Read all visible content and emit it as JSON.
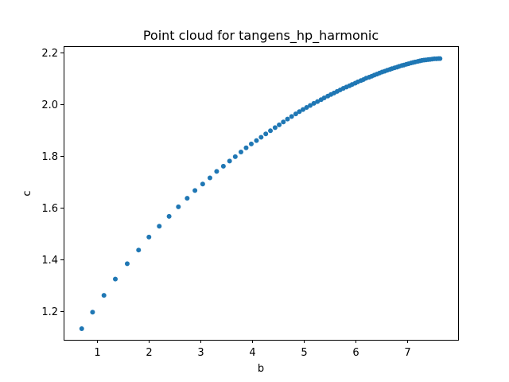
{
  "chart_data": {
    "type": "scatter",
    "title": "Point cloud for tangens_hp_harmonic",
    "xlabel": "b",
    "ylabel": "c",
    "xlim": [
      0.35,
      7.98
    ],
    "ylim": [
      1.09,
      2.225
    ],
    "xticks": [
      1,
      2,
      3,
      4,
      5,
      6,
      7
    ],
    "yticks": [
      1.2,
      1.4,
      1.6,
      1.8,
      2.0,
      2.2
    ],
    "xtick_labels": [
      "1",
      "2",
      "3",
      "4",
      "5",
      "6",
      "7"
    ],
    "ytick_labels": [
      "1.2",
      "1.4",
      "1.6",
      "1.8",
      "2.0",
      "2.2"
    ],
    "grid": false,
    "marker_color": "#1f77b4",
    "series": [
      {
        "x": [
          0.7,
          0.91,
          1.13,
          1.35,
          1.58,
          1.8,
          2.0,
          2.2,
          2.39,
          2.57,
          2.74,
          2.89,
          3.04,
          3.18,
          3.31,
          3.44,
          3.56,
          3.67,
          3.78,
          3.88,
          3.98,
          4.08,
          4.17,
          4.26,
          4.35,
          4.44,
          4.52,
          4.6,
          4.68,
          4.76,
          4.84,
          4.91,
          4.98,
          5.05,
          5.12,
          5.19,
          5.26,
          5.33,
          5.39,
          5.46,
          5.52,
          5.58,
          5.64,
          5.7,
          5.76,
          5.82,
          5.88,
          5.93,
          5.99,
          6.04,
          6.1,
          6.15,
          6.2,
          6.26,
          6.31,
          6.36,
          6.41,
          6.46,
          6.51,
          6.56,
          6.61,
          6.66,
          6.7,
          6.75,
          6.8,
          6.84,
          6.89,
          6.93,
          6.98,
          7.02,
          7.07,
          7.11,
          7.15,
          7.2,
          7.24,
          7.28,
          7.32,
          7.36,
          7.4,
          7.44,
          7.48,
          7.52,
          7.56,
          7.6,
          7.63
        ],
        "y": [
          1.133,
          1.197,
          1.262,
          1.325,
          1.384,
          1.437,
          1.487,
          1.529,
          1.567,
          1.604,
          1.637,
          1.667,
          1.692,
          1.716,
          1.741,
          1.761,
          1.781,
          1.798,
          1.816,
          1.832,
          1.847,
          1.86,
          1.873,
          1.886,
          1.898,
          1.91,
          1.921,
          1.932,
          1.943,
          1.953,
          1.963,
          1.972,
          1.98,
          1.988,
          1.996,
          2.004,
          2.011,
          2.018,
          2.025,
          2.032,
          2.038,
          2.044,
          2.05,
          2.056,
          2.062,
          2.067,
          2.072,
          2.077,
          2.082,
          2.087,
          2.092,
          2.096,
          2.101,
          2.105,
          2.109,
          2.113,
          2.117,
          2.121,
          2.125,
          2.128,
          2.132,
          2.135,
          2.138,
          2.141,
          2.144,
          2.147,
          2.15,
          2.152,
          2.155,
          2.157,
          2.16,
          2.162,
          2.164,
          2.166,
          2.168,
          2.17,
          2.171,
          2.172,
          2.173,
          2.174,
          2.175,
          2.176,
          2.176,
          2.177,
          2.177
        ]
      }
    ]
  }
}
